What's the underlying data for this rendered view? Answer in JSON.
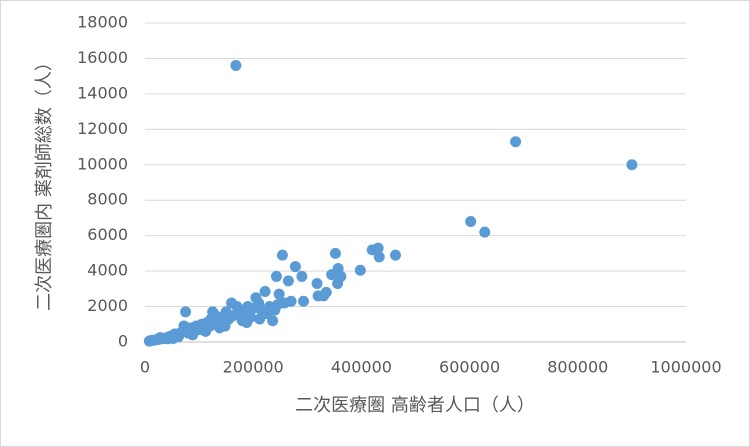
{
  "chart_data": {
    "type": "scatter",
    "x_label": "二次医療圏 高齢者人口（人）",
    "y_label": "二次医療圏内 薬剤師総数（人）",
    "color": "#5b9bd5",
    "grid": true,
    "xlim": [
      0,
      1000000
    ],
    "xticks": [
      0,
      200000,
      400000,
      600000,
      800000,
      1000000
    ],
    "ylim": [
      0,
      18000
    ],
    "yticks": [
      0,
      2000,
      4000,
      6000,
      8000,
      10000,
      12000,
      14000,
      16000,
      18000
    ],
    "x": [
      168000,
      685000,
      900000,
      602000,
      628000,
      431000,
      420000,
      433000,
      463000,
      398000,
      352000,
      254000,
      357000,
      362000,
      356000,
      345000,
      290000,
      243000,
      278000,
      265000,
      318000,
      330000,
      320000,
      335000,
      293000,
      258000,
      248000,
      222000,
      205000,
      240000,
      230000,
      225000,
      215000,
      210000,
      195000,
      200000,
      190000,
      185000,
      180000,
      175000,
      170000,
      160000,
      155000,
      150000,
      145000,
      140000,
      135000,
      130000,
      125000,
      120000,
      115000,
      110000,
      105000,
      100000,
      95000,
      90000,
      85000,
      80000,
      75000,
      72000,
      70000,
      65000,
      60000,
      55000,
      50000,
      45000,
      40000,
      35000,
      30000,
      25000,
      20000,
      15000,
      10000,
      8000,
      236000,
      188000,
      165000,
      122000,
      97000,
      112000,
      88000,
      62000,
      42000,
      28000,
      52000,
      245000,
      270000,
      212000,
      178000,
      148000,
      138000,
      82000
    ],
    "values": [
      15600,
      11300,
      10000,
      6800,
      6200,
      5300,
      5200,
      4800,
      4900,
      4050,
      5000,
      4900,
      4150,
      3700,
      3300,
      3800,
      3700,
      3700,
      4250,
      3450,
      3300,
      2600,
      2600,
      2800,
      2300,
      2200,
      2700,
      2850,
      2500,
      1800,
      2000,
      1600,
      1800,
      2200,
      1400,
      1900,
      2000,
      1500,
      1200,
      1700,
      2000,
      2200,
      1300,
      1700,
      1000,
      1400,
      1200,
      1500,
      1700,
      900,
      1100,
      800,
      1000,
      700,
      900,
      600,
      800,
      500,
      1700,
      900,
      600,
      500,
      400,
      450,
      350,
      300,
      250,
      200,
      180,
      150,
      120,
      100,
      80,
      50,
      1200,
      1100,
      1500,
      1300,
      750,
      600,
      400,
      300,
      180,
      250,
      200,
      2100,
      2300,
      1300,
      1800,
      900,
      800,
      650
    ]
  }
}
